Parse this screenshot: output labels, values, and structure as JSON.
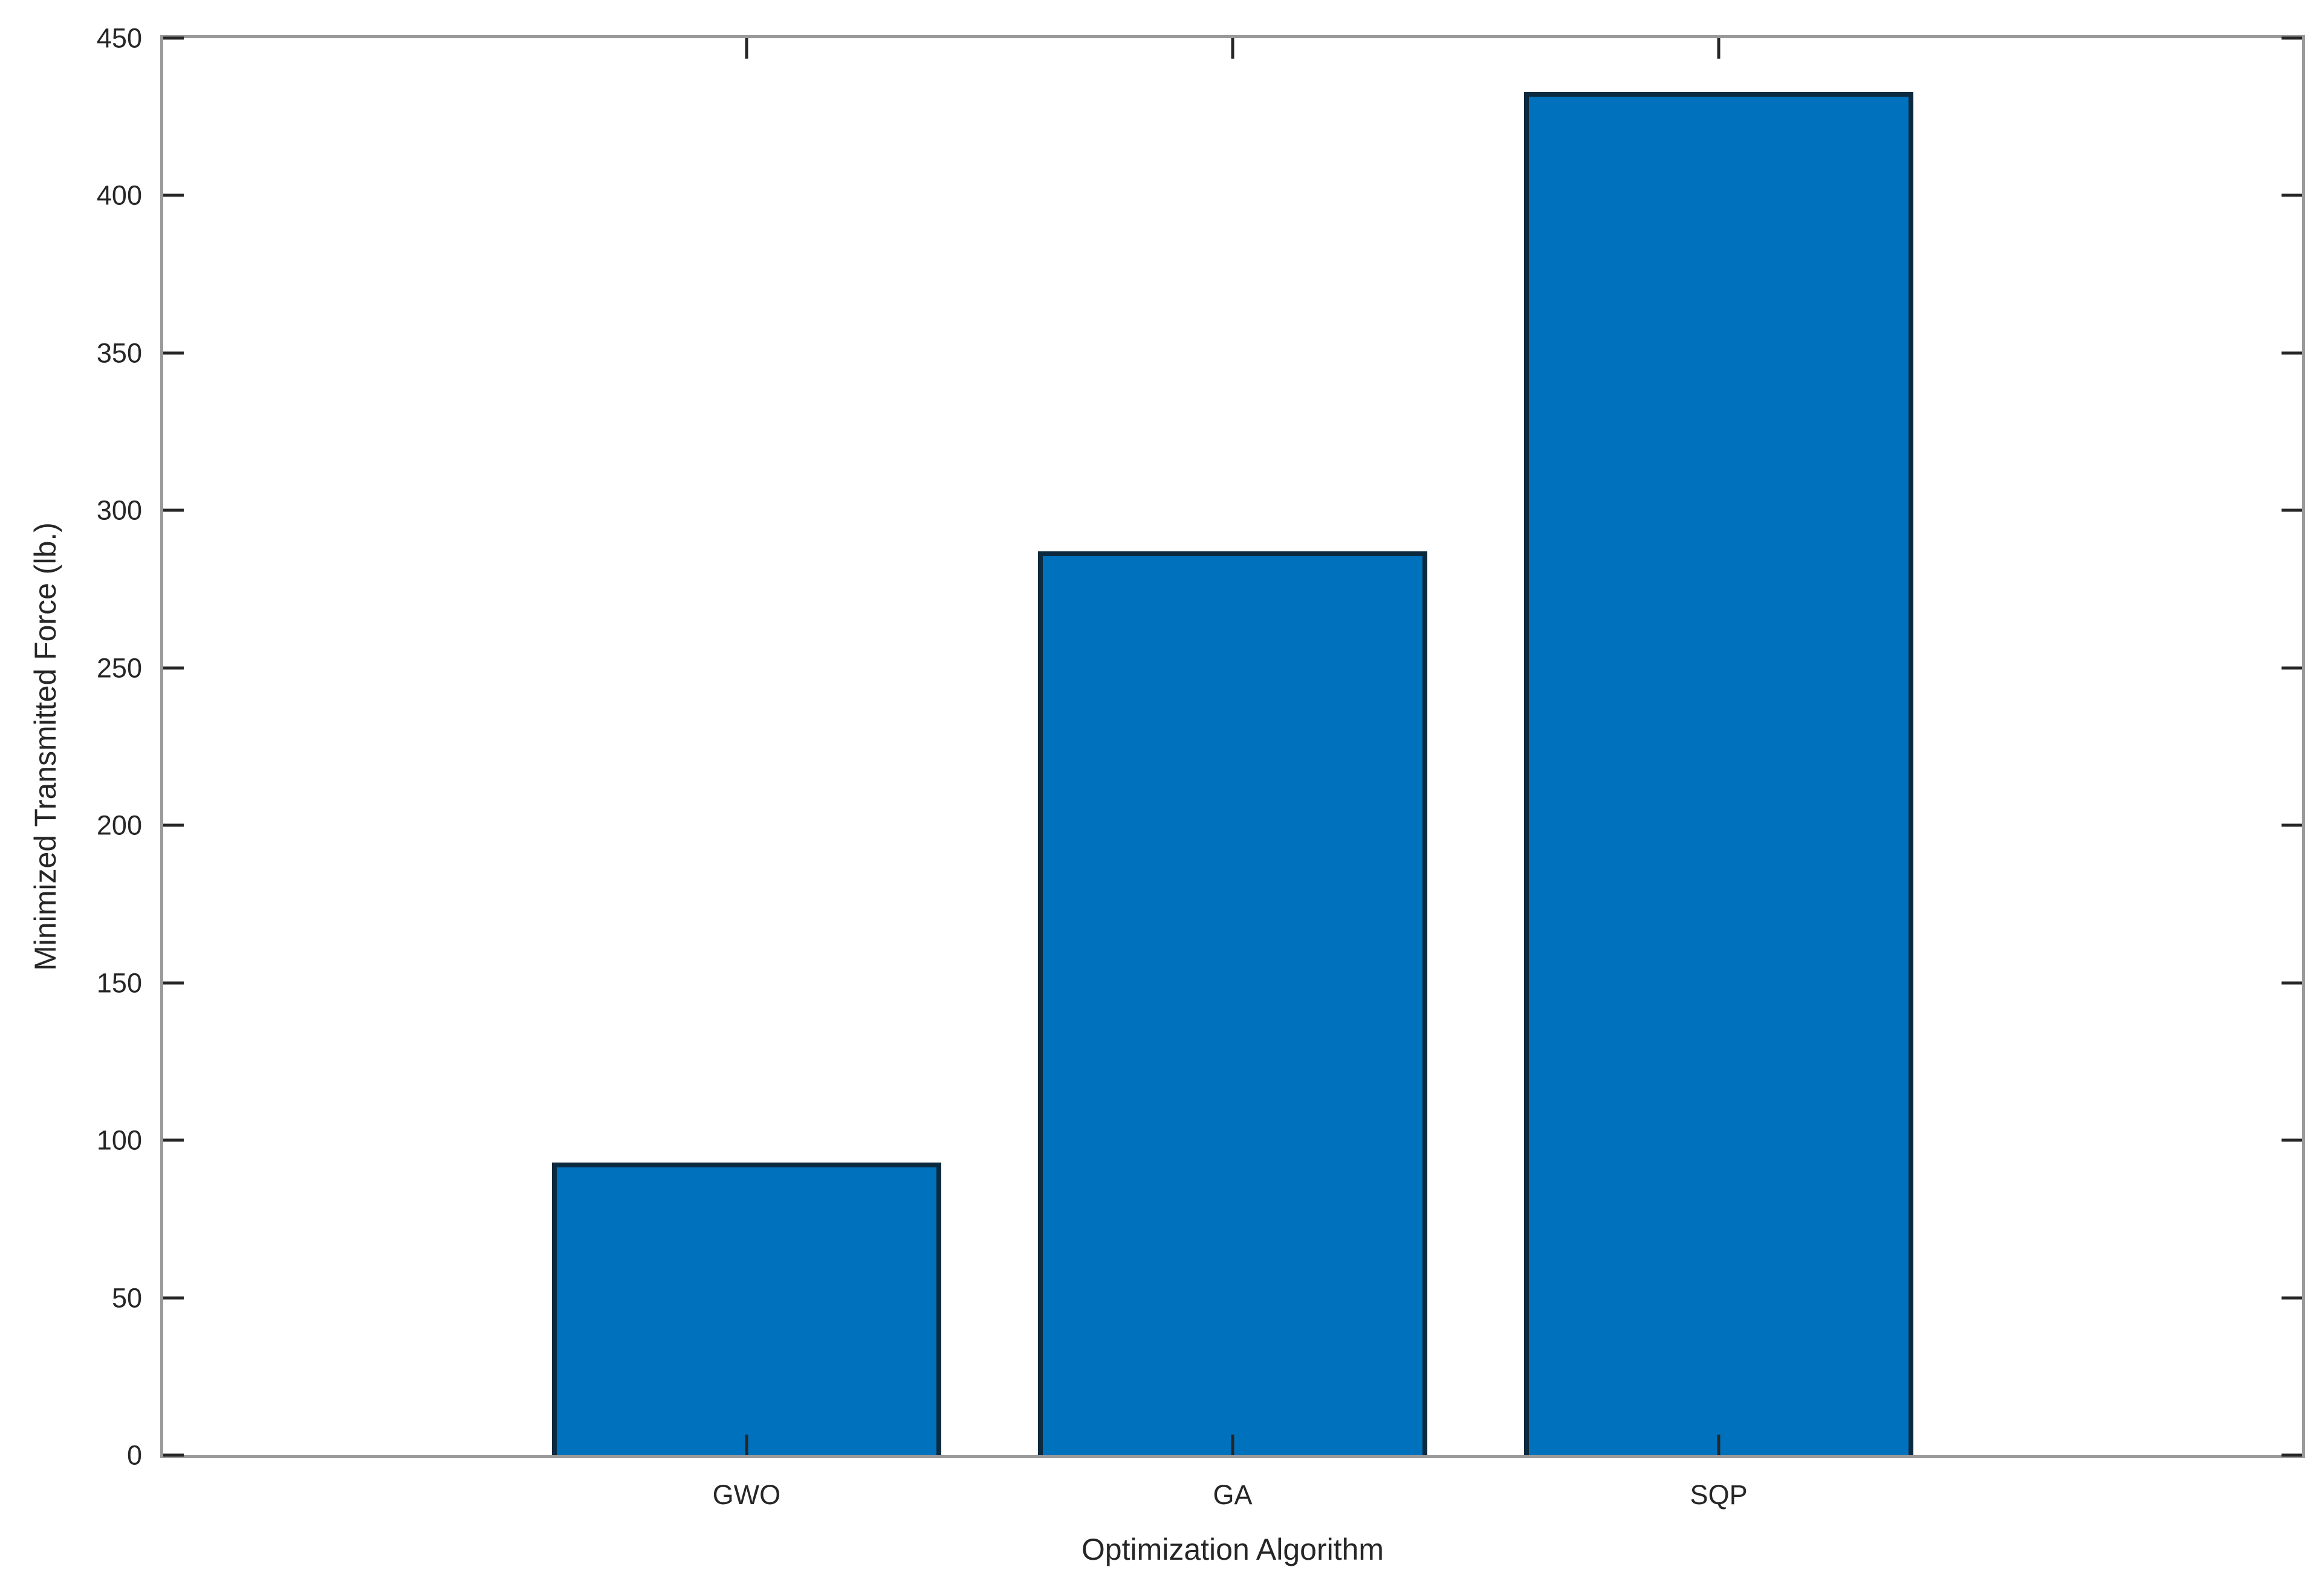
{
  "chart_data": {
    "type": "bar",
    "title": "",
    "categories": [
      "GWO",
      "GA",
      "SQP"
    ],
    "values": [
      93,
      287,
      433
    ],
    "xlabel": "Optimization Algorithm",
    "ylabel": "Minimized Transmitted Force (lb.)",
    "ylim": [
      0,
      450
    ],
    "yticks": [
      0,
      50,
      100,
      150,
      200,
      250,
      300,
      350,
      400,
      450
    ],
    "grid": false,
    "legend": false,
    "box": true,
    "tick_direction": "in",
    "bar_width_ratio": 0.8,
    "colors": {
      "bar_fill": "#0072BD",
      "bar_edge": "#0c2a3f",
      "axis_box": "#9a9a9a",
      "tick_mark": "#262626",
      "text": "#262626",
      "background": "#ffffff"
    }
  }
}
